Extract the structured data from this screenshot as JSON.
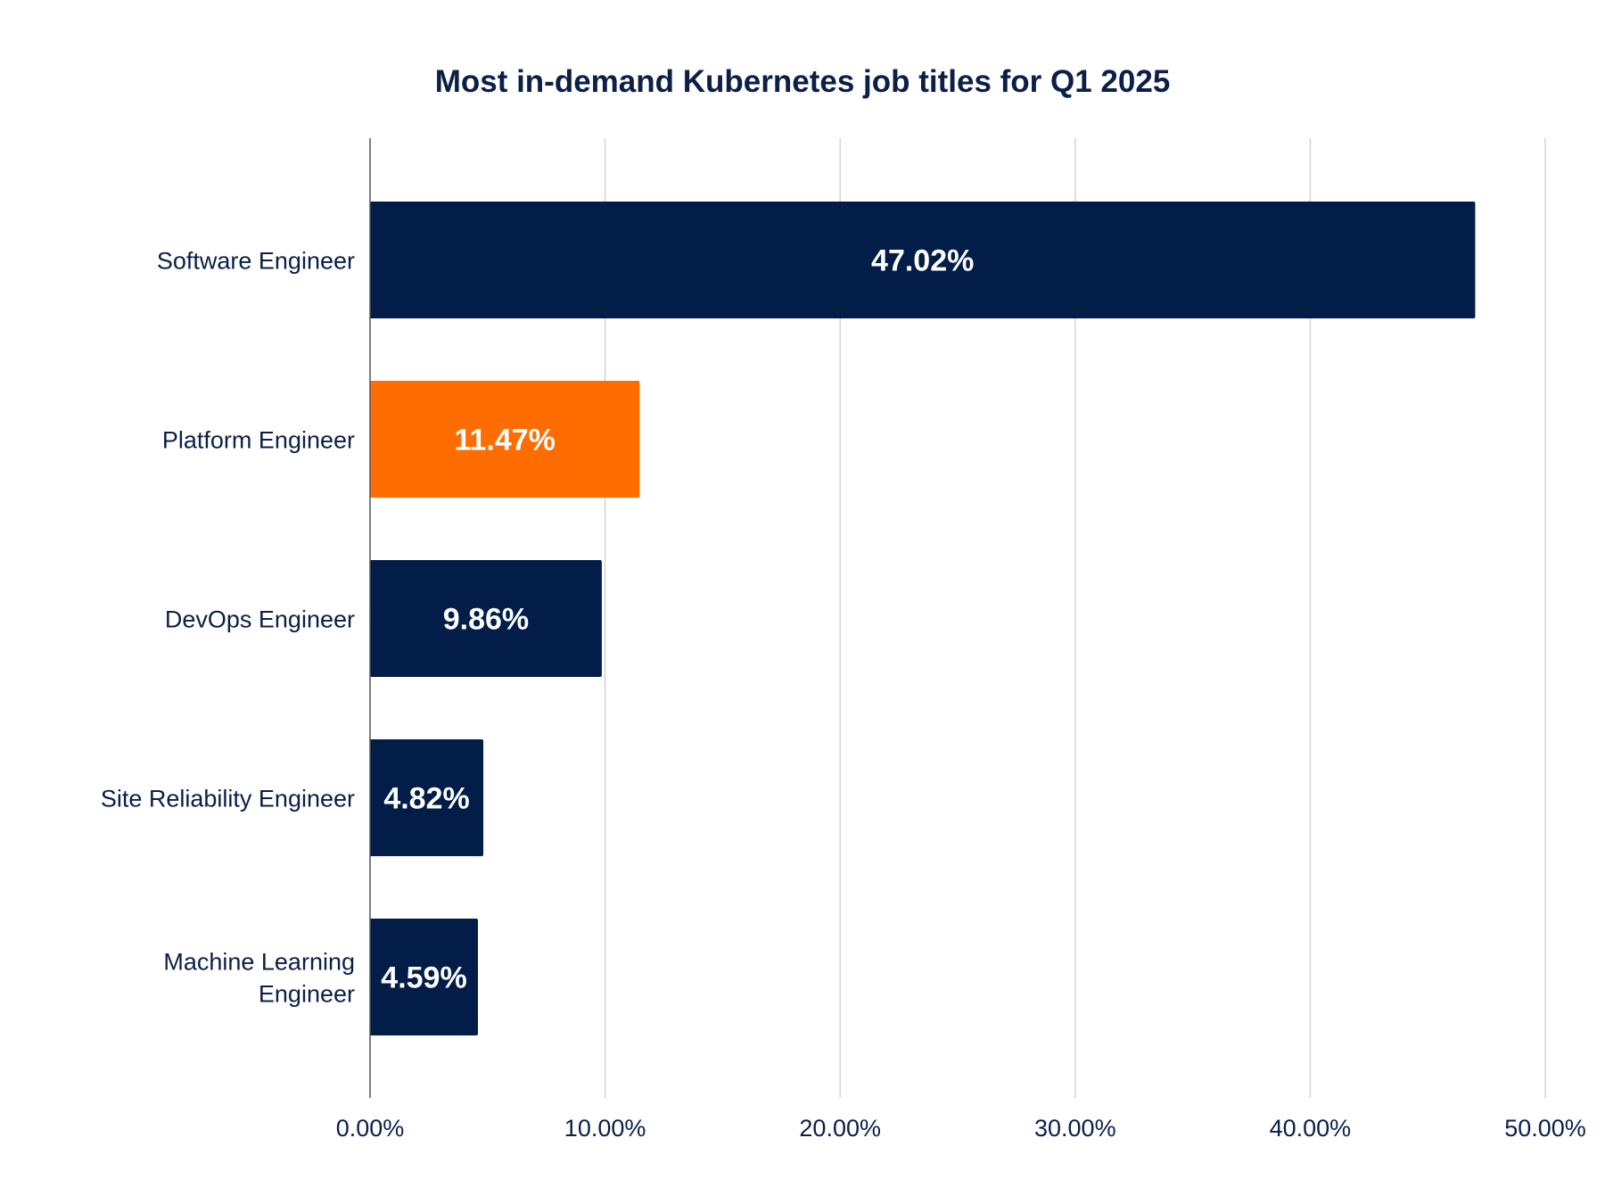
{
  "chart_data": {
    "type": "bar",
    "orientation": "horizontal",
    "title": "Most in-demand Kubernetes job titles  for Q1 2025",
    "xlabel": "",
    "ylabel": "",
    "categories": [
      "Software Engineer",
      "Platform Engineer",
      "DevOps Engineer",
      "Site Reliability Engineer",
      "Machine Learning Engineer"
    ],
    "category_lines": [
      [
        "Software Engineer"
      ],
      [
        "Platform Engineer"
      ],
      [
        "DevOps Engineer"
      ],
      [
        "Site Reliability Engineer"
      ],
      [
        "Machine Learning",
        "Engineer"
      ]
    ],
    "values": [
      47.02,
      11.47,
      9.86,
      4.82,
      4.59
    ],
    "value_labels": [
      "47.02%",
      "11.47%",
      "9.86%",
      "4.82%",
      "4.59%"
    ],
    "highlight_index": 1,
    "xlim": [
      0,
      50
    ],
    "xticks": [
      0,
      10,
      20,
      30,
      40,
      50
    ],
    "xtick_labels": [
      "0.00%",
      "10.00%",
      "20.00%",
      "30.00%",
      "40.00%",
      "50.00%"
    ],
    "grid": "vertical",
    "legend": "none",
    "colors": {
      "bar": "#021d47",
      "highlight": "#ff6d00",
      "text": "#0b1f47",
      "value_text": "#ffffff"
    }
  }
}
